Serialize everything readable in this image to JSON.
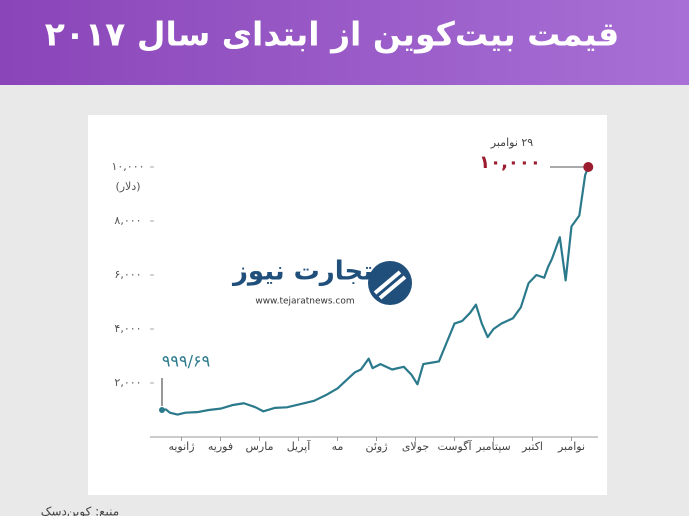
{
  "chart_data": {
    "type": "line",
    "title": "قیمت بیت‌کوین از ابتدای سال ۲۰۱۷",
    "y_label": "(دلار)",
    "source": "منبع: کوین‌دسک",
    "logo": {
      "name": "تجارت نیوز",
      "url": "www.tejaratnews.com"
    },
    "x": [
      1.0,
      1.1,
      1.2,
      1.4,
      1.6,
      1.9,
      2.2,
      2.5,
      2.8,
      3.1,
      3.4,
      3.6,
      3.9,
      4.2,
      4.5,
      4.9,
      5.2,
      5.5,
      5.8,
      5.95,
      6.1,
      6.3,
      6.4,
      6.6,
      6.9,
      7.2,
      7.4,
      7.55,
      7.7,
      7.9,
      8.1,
      8.3,
      8.5,
      8.7,
      8.9,
      9.05,
      9.2,
      9.35,
      9.5,
      9.7,
      10.0,
      10.2,
      10.4,
      10.6,
      10.8,
      10.9,
      11.0,
      11.2,
      11.35,
      11.5,
      11.7,
      11.85,
      11.93
    ],
    "series": [
      {
        "color": "#2b7a8c",
        "values": [
          999.69,
          1020,
          900,
          830,
          900,
          920,
          1000,
          1050,
          1180,
          1250,
          1100,
          950,
          1080,
          1100,
          1200,
          1340,
          1550,
          1800,
          2200,
          2400,
          2500,
          2900,
          2550,
          2700,
          2500,
          2600,
          2300,
          1950,
          2700,
          2750,
          2800,
          3500,
          4200,
          4300,
          4600,
          4900,
          4200,
          3700,
          4000,
          4200,
          4400,
          4800,
          5700,
          6000,
          5900,
          6300,
          6600,
          7400,
          5800,
          7800,
          8200,
          9700,
          10000
        ]
      }
    ],
    "xlim": [
      1,
      12
    ],
    "xticks": [
      {
        "value": 1.5,
        "label": "ژانویه"
      },
      {
        "value": 2.5,
        "label": "فوریه"
      },
      {
        "value": 3.5,
        "label": "مارس"
      },
      {
        "value": 4.5,
        "label": "آپریل"
      },
      {
        "value": 5.5,
        "label": "مه"
      },
      {
        "value": 6.5,
        "label": "ژوئن"
      },
      {
        "value": 7.5,
        "label": "جولای"
      },
      {
        "value": 8.5,
        "label": "آگوست"
      },
      {
        "value": 9.5,
        "label": "سپتامبر"
      },
      {
        "value": 10.5,
        "label": "اکتبر"
      },
      {
        "value": 11.5,
        "label": "نوامبر"
      }
    ],
    "ylim": [
      0,
      10000
    ],
    "yticks": [
      {
        "value": 2000,
        "label": "۲,۰۰۰"
      },
      {
        "value": 4000,
        "label": "۴,۰۰۰"
      },
      {
        "value": 6000,
        "label": "۶,۰۰۰"
      },
      {
        "value": 8000,
        "label": "۸,۰۰۰"
      },
      {
        "value": 10000,
        "label": "۱۰,۰۰۰"
      }
    ],
    "annotations": [
      {
        "label": "۹۹۹/۶۹",
        "value": 999.69,
        "x": 1.0,
        "color": "#2b7a8c"
      },
      {
        "date": "۲۹ نوامبر",
        "label": "۱۰,۰۰۰",
        "value": 10000,
        "x": 11.93,
        "color": "#9b1c2e"
      }
    ]
  }
}
